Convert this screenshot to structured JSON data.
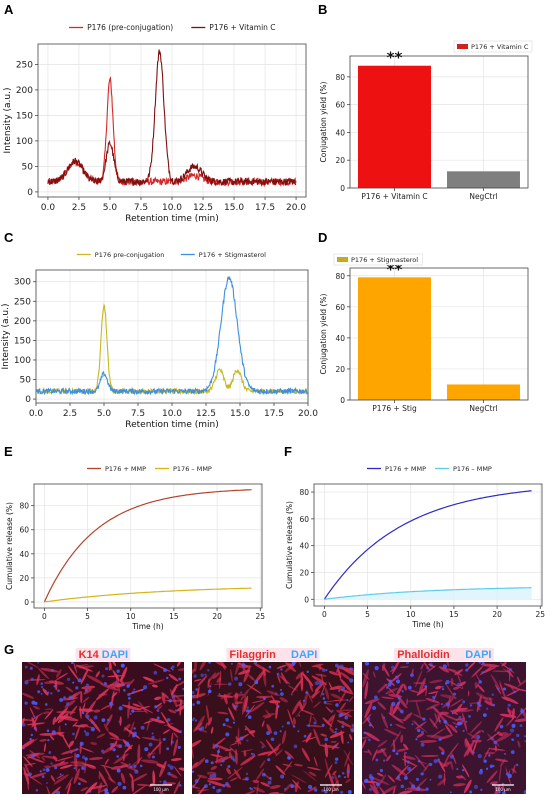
{
  "panel_letters": [
    "A",
    "B",
    "C",
    "D",
    "E",
    "F",
    "G"
  ],
  "chart_data": [
    {
      "panel": "A",
      "type": "line",
      "xlabel": "Retention time (min)",
      "ylabel": "Intensity (a.u.)",
      "xlim": [
        -0.8,
        20.8
      ],
      "ylim": [
        -10,
        290
      ],
      "xticks": [
        0.0,
        2.5,
        5.0,
        7.5,
        10.0,
        12.5,
        15.0,
        17.5,
        20.0
      ],
      "xtick_labels": [
        "0.0",
        "2.5",
        "5.0",
        "7.5",
        "10.0",
        "12.5",
        "15.0",
        "17.5",
        "20.0"
      ],
      "yticks": [
        0,
        50,
        100,
        150,
        200,
        250
      ],
      "ytick_labels": [
        "0",
        "50",
        "100",
        "150",
        "200",
        "250"
      ],
      "grid": true,
      "legend_position": "top",
      "series": [
        {
          "name": "P176 (pre-conjugation)",
          "color": "#d62728",
          "baseline": 20,
          "peaks": [
            {
              "x": 2.2,
              "h": 40,
              "w": 0.6
            },
            {
              "x": 5.0,
              "h": 200,
              "w": 0.25
            },
            {
              "x": 11.8,
              "h": 12,
              "w": 0.6
            }
          ]
        },
        {
          "name": "P176 + Vitamin C",
          "color": "#7f1010",
          "baseline": 20,
          "peaks": [
            {
              "x": 2.2,
              "h": 40,
              "w": 0.6
            },
            {
              "x": 5.0,
              "h": 75,
              "w": 0.3
            },
            {
              "x": 9.0,
              "h": 255,
              "w": 0.35
            },
            {
              "x": 11.8,
              "h": 30,
              "w": 0.6
            }
          ]
        }
      ]
    },
    {
      "panel": "B",
      "type": "bar",
      "categories": [
        "P176 + Vitamin C",
        "NegCtrl"
      ],
      "values": [
        88,
        12
      ],
      "colors": [
        "#ee1111",
        "#7f7f7f"
      ],
      "ylabel": "Conjugation yield (%)",
      "ylim": [
        0,
        95
      ],
      "yticks": [
        0,
        20,
        40,
        60,
        80
      ],
      "ytick_labels": [
        "0",
        "20",
        "40",
        "60",
        "80"
      ],
      "legend": "P176 + Vitamin C",
      "legend_color": "#cc2222",
      "legend_position": "top-right",
      "annotation": "**",
      "grid": true
    },
    {
      "panel": "C",
      "type": "line",
      "xlabel": "Retention time (min)",
      "ylabel": "Intensity (a.u.)",
      "xlim": [
        0,
        20
      ],
      "ylim": [
        -10,
        330
      ],
      "xticks": [
        0.0,
        2.5,
        5.0,
        7.5,
        10.0,
        12.5,
        15.0,
        17.5,
        20.0
      ],
      "xtick_labels": [
        "0.0",
        "2.5",
        "5.0",
        "7.5",
        "10.0",
        "12.5",
        "15.0",
        "17.5",
        "20.0"
      ],
      "yticks": [
        0,
        50,
        100,
        150,
        200,
        250,
        300
      ],
      "ytick_labels": [
        "0",
        "50",
        "100",
        "150",
        "200",
        "250",
        "300"
      ],
      "grid": true,
      "legend_position": "top",
      "series": [
        {
          "name": "P176 pre-conjugation",
          "color": "#c8b820",
          "baseline": 20,
          "peaks": [
            {
              "x": 5.0,
              "h": 220,
              "w": 0.22
            },
            {
              "x": 13.5,
              "h": 55,
              "w": 0.3
            },
            {
              "x": 14.8,
              "h": 55,
              "w": 0.3
            }
          ]
        },
        {
          "name": "P176 + Stigmasterol",
          "color": "#3d8fdf",
          "baseline": 20,
          "peaks": [
            {
              "x": 5.0,
              "h": 45,
              "w": 0.25
            },
            {
              "x": 14.2,
              "h": 290,
              "w": 0.6
            }
          ]
        }
      ]
    },
    {
      "panel": "D",
      "type": "bar",
      "categories": [
        "P176 + Stig",
        "NegCtrl"
      ],
      "values": [
        79,
        10
      ],
      "colors": [
        "#ffa500",
        "#ffa500"
      ],
      "ylabel": "Conjugation yield (%)",
      "ylim": [
        0,
        85
      ],
      "yticks": [
        0,
        20,
        40,
        60,
        80
      ],
      "ytick_labels": [
        "0",
        "20",
        "40",
        "60",
        "80"
      ],
      "legend": "P176 + Stigmasterol",
      "legend_color": "#c8a820",
      "legend_position": "top-left",
      "annotation": "**",
      "grid": true
    },
    {
      "panel": "E",
      "type": "line",
      "xlabel": "Time (h)",
      "ylabel": "Cumulative release (%)",
      "xlim": [
        -1.2,
        25.2
      ],
      "ylim": [
        -5,
        98
      ],
      "xticks": [
        0,
        5,
        10,
        15,
        20,
        25
      ],
      "xtick_labels": [
        "0",
        "5",
        "10",
        "15",
        "20",
        "25"
      ],
      "yticks": [
        0,
        20,
        40,
        60,
        80
      ],
      "ytick_labels": [
        "0",
        "20",
        "40",
        "60",
        "80"
      ],
      "grid": true,
      "legend_position": "top",
      "series": [
        {
          "name": "P176 + MMP",
          "color": "#b5432a",
          "model": "saturating",
          "plateau": 95,
          "tau": 6,
          "x_end": 24
        },
        {
          "name": "P176 – MMP",
          "color": "#d4b417",
          "model": "saturating",
          "plateau": 14,
          "tau": 14,
          "x_end": 24
        }
      ]
    },
    {
      "panel": "F",
      "type": "line",
      "xlabel": "Time (h)",
      "ylabel": "Cumulative release (%)",
      "xlim": [
        -1.2,
        25.2
      ],
      "ylim": [
        -5,
        86
      ],
      "xticks": [
        0,
        5,
        10,
        15,
        20,
        25
      ],
      "xtick_labels": [
        "0",
        "5",
        "10",
        "15",
        "20",
        "25"
      ],
      "yticks": [
        0,
        20,
        40,
        60,
        80
      ],
      "ytick_labels": [
        "0",
        "20",
        "40",
        "60",
        "80"
      ],
      "grid": true,
      "legend_position": "top",
      "series": [
        {
          "name": "P176 + MMP",
          "color": "#2b2bc8",
          "model": "saturating",
          "plateau": 87,
          "tau": 9,
          "x_end": 24
        },
        {
          "name": "P176 – MMP",
          "color": "#5ecbea",
          "model": "saturating",
          "plateau": 10,
          "tau": 12,
          "x_end": 24
        }
      ]
    }
  ],
  "micrographs": [
    {
      "label_marker": "K14",
      "label_stain": "DAPI",
      "marker_color": "#e03030",
      "stain_color": "#3aa8ff",
      "bg": "#3a0d1e",
      "cell": "#e0355a",
      "scale": "100 µm"
    },
    {
      "label_marker": "Filaggrin",
      "label_stain": "DAPI",
      "marker_color": "#e03030",
      "stain_color": "#3aa8ff",
      "bg": "#38101c",
      "cell": "#d83052",
      "scale": "100 µm"
    },
    {
      "label_marker": "Phalloidin",
      "label_stain": "DAPI",
      "marker_color": "#e03030",
      "stain_color": "#3aa8ff",
      "bg": "#3c1430",
      "cell": "#d23060",
      "scale": "100 µm"
    }
  ]
}
